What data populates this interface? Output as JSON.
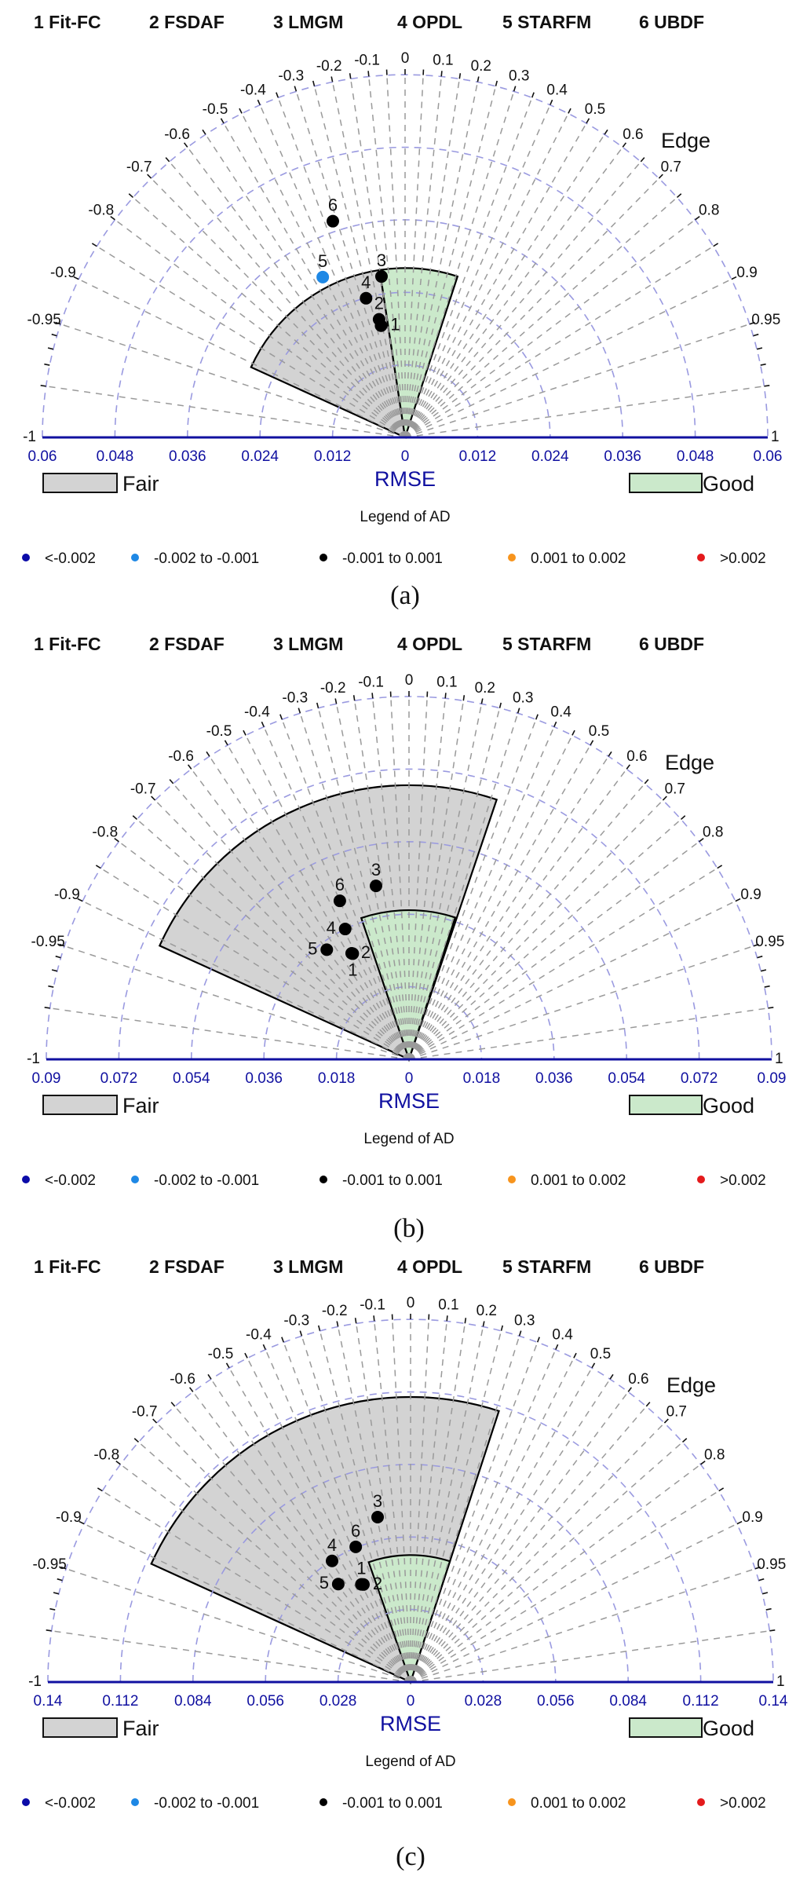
{
  "methods": [
    "1 Fit-FC",
    "2 FSDAF",
    "3 LMGM",
    "4 OPDL",
    "5 STARFM",
    "6 UBDF"
  ],
  "angular_axis_label": "Edge",
  "radial_axis_label": "RMSE",
  "angular_ticks": [
    "-0.95",
    "-0.9",
    "-0.8",
    "-0.7",
    "-0.6",
    "-0.5",
    "-0.4",
    "-0.3",
    "-0.2",
    "-0.1",
    "0",
    "0.1",
    "0.2",
    "0.3",
    "0.4",
    "0.5",
    "0.6",
    "0.7",
    "0.8",
    "0.9",
    "0.95"
  ],
  "angular_ends": [
    "-1",
    "1"
  ],
  "region_legend": {
    "fair": "Fair",
    "good": "Good",
    "fair_color": "#d3d3d3",
    "good_color": "#cbe9cb"
  },
  "ad_legend": {
    "title": "Legend of AD",
    "items": [
      {
        "label": "<-0.002",
        "color": "#0b0ba8"
      },
      {
        "label": "-0.002 to -0.001",
        "color": "#1e88e5"
      },
      {
        "label": "-0.001 to 0.001",
        "color": "#000000"
      },
      {
        "label": "0.001 to 0.002",
        "color": "#f7941d"
      },
      {
        "label": ">0.002",
        "color": "#e41a1c"
      }
    ]
  },
  "chart_data": [
    {
      "type": "scatter",
      "coordinate_system": "polar (angle = Edge, radius = RMSE)",
      "caption": "(a)",
      "rmax": 0.06,
      "rmse_ticks": [
        "0",
        "0.012",
        "0.024",
        "0.036",
        "0.048",
        "0.06"
      ],
      "regions": {
        "fair": {
          "edge": [
            -0.91,
            -0.15
          ],
          "rmse_max": 0.028
        },
        "good": {
          "edge": [
            -0.15,
            0.31
          ],
          "rmse_max": 0.028
        }
      },
      "points": [
        {
          "id": "1",
          "edge": -0.21,
          "rmse": 0.0189,
          "ad_class": 2
        },
        {
          "id": "2",
          "edge": -0.215,
          "rmse": 0.02,
          "ad_class": 2
        },
        {
          "id": "3",
          "edge": -0.145,
          "rmse": 0.0269,
          "ad_class": 2
        },
        {
          "id": "4",
          "edge": -0.27,
          "rmse": 0.0239,
          "ad_class": 2
        },
        {
          "id": "5",
          "edge": -0.457,
          "rmse": 0.0298,
          "ad_class": 1
        },
        {
          "id": "6",
          "edge": -0.317,
          "rmse": 0.0377,
          "ad_class": 2
        }
      ]
    },
    {
      "type": "scatter",
      "coordinate_system": "polar (angle = Edge, radius = RMSE)",
      "caption": "(b)",
      "rmax": 0.09,
      "rmse_ticks": [
        "0",
        "0.018",
        "0.036",
        "0.054",
        "0.072",
        "0.09"
      ],
      "regions": {
        "fair": {
          "edge": [
            -0.91,
            0.32
          ],
          "rmse_max": 0.068
        },
        "good": {
          "edge": [
            -0.32,
            0.31
          ],
          "rmse_max": 0.037
        }
      },
      "points": [
        {
          "id": "1",
          "edge": -0.47,
          "rmse": 0.0297,
          "ad_class": 2
        },
        {
          "id": "2",
          "edge": -0.476,
          "rmse": 0.0299,
          "ad_class": 2
        },
        {
          "id": "3",
          "edge": -0.187,
          "rmse": 0.0438,
          "ad_class": 2
        },
        {
          "id": "4",
          "edge": -0.44,
          "rmse": 0.036,
          "ad_class": 2
        },
        {
          "id": "5",
          "edge": -0.6,
          "rmse": 0.034,
          "ad_class": 2
        },
        {
          "id": "6",
          "edge": -0.4,
          "rmse": 0.0429,
          "ad_class": 2
        }
      ]
    },
    {
      "type": "scatter",
      "coordinate_system": "polar (angle = Edge, radius = RMSE)",
      "caption": "(c)",
      "rmax": 0.14,
      "rmse_ticks": [
        "0",
        "0.028",
        "0.056",
        "0.084",
        "0.112",
        "0.14"
      ],
      "regions": {
        "fair": {
          "edge": [
            -0.91,
            0.31
          ],
          "rmse_max": 0.11
        },
        "good": {
          "edge": [
            -0.33,
            0.31
          ],
          "rmse_max": 0.049
        }
      },
      "points": [
        {
          "id": "1",
          "edge": -0.45,
          "rmse": 0.0422,
          "ad_class": 2
        },
        {
          "id": "2",
          "edge": -0.435,
          "rmse": 0.0418,
          "ad_class": 2
        },
        {
          "id": "3",
          "edge": -0.196,
          "rmse": 0.0649,
          "ad_class": 2
        },
        {
          "id": "4",
          "edge": -0.544,
          "rmse": 0.0557,
          "ad_class": 2
        },
        {
          "id": "5",
          "edge": -0.594,
          "rmse": 0.047,
          "ad_class": 2
        },
        {
          "id": "6",
          "edge": -0.376,
          "rmse": 0.0563,
          "ad_class": 2
        }
      ]
    }
  ]
}
